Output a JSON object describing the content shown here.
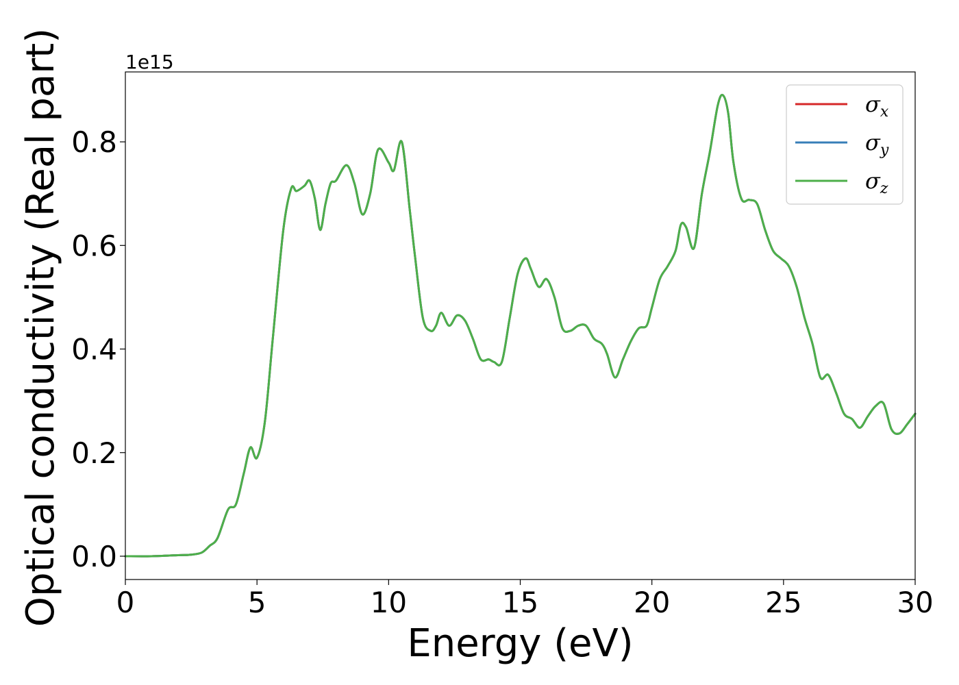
{
  "chart_data": {
    "type": "line",
    "xlabel": "Energy (eV)",
    "ylabel": "Optical conductivity (Real part)",
    "y_offset_label": "1e15",
    "y_scale_factor": 1000000000000000.0,
    "xlim": [
      0,
      30
    ],
    "ylim": [
      -0.045,
      0.935
    ],
    "x_ticks": [
      0,
      5,
      10,
      15,
      20,
      25,
      30
    ],
    "x_tick_labels": [
      "0",
      "5",
      "10",
      "15",
      "20",
      "25",
      "30"
    ],
    "y_ticks": [
      0.0,
      0.2,
      0.4,
      0.6,
      0.8
    ],
    "y_tick_labels": [
      "0.0",
      "0.2",
      "0.4",
      "0.6",
      "0.8"
    ],
    "grid": false,
    "legend_position": "top-right",
    "series": [
      {
        "name": "σx",
        "legend_symbol": "σ",
        "legend_subscript": "x",
        "color": "#d62728",
        "x": [
          0,
          1,
          2,
          2.5,
          2.9,
          3.2,
          3.5,
          3.9,
          4.2,
          4.5,
          4.75,
          5.0,
          5.3,
          5.6,
          6.0,
          6.3,
          6.5,
          6.8,
          7.0,
          7.2,
          7.4,
          7.6,
          7.8,
          8.0,
          8.4,
          8.7,
          9.0,
          9.3,
          9.6,
          10.0,
          10.2,
          10.5,
          10.8,
          11.0,
          11.3,
          11.6,
          11.8,
          12.0,
          12.3,
          12.6,
          12.9,
          13.2,
          13.5,
          13.8,
          14.0,
          14.3,
          14.6,
          14.9,
          15.2,
          15.4,
          15.7,
          16.0,
          16.3,
          16.6,
          16.9,
          17.2,
          17.5,
          17.8,
          18.1,
          18.3,
          18.6,
          18.9,
          19.2,
          19.5,
          19.8,
          20.0,
          20.3,
          20.6,
          20.9,
          21.1,
          21.3,
          21.6,
          21.9,
          22.2,
          22.5,
          22.7,
          22.9,
          23.1,
          23.4,
          23.7,
          24.0,
          24.3,
          24.6,
          24.9,
          25.2,
          25.5,
          25.8,
          26.1,
          26.4,
          26.7,
          27.0,
          27.3,
          27.6,
          27.9,
          28.2,
          28.5,
          28.8,
          29.1,
          29.4,
          29.7,
          30.0
        ],
        "y": [
          0.0,
          0.0,
          0.002,
          0.003,
          0.007,
          0.02,
          0.035,
          0.09,
          0.1,
          0.16,
          0.21,
          0.19,
          0.26,
          0.42,
          0.63,
          0.71,
          0.705,
          0.715,
          0.725,
          0.69,
          0.63,
          0.68,
          0.72,
          0.725,
          0.755,
          0.72,
          0.66,
          0.7,
          0.785,
          0.76,
          0.745,
          0.8,
          0.67,
          0.58,
          0.46,
          0.435,
          0.445,
          0.47,
          0.445,
          0.465,
          0.455,
          0.42,
          0.38,
          0.38,
          0.375,
          0.375,
          0.46,
          0.545,
          0.575,
          0.555,
          0.52,
          0.535,
          0.5,
          0.44,
          0.435,
          0.445,
          0.445,
          0.42,
          0.41,
          0.39,
          0.345,
          0.38,
          0.415,
          0.44,
          0.445,
          0.48,
          0.535,
          0.56,
          0.59,
          0.64,
          0.635,
          0.595,
          0.7,
          0.78,
          0.87,
          0.89,
          0.855,
          0.76,
          0.69,
          0.688,
          0.68,
          0.63,
          0.59,
          0.575,
          0.56,
          0.52,
          0.46,
          0.41,
          0.345,
          0.35,
          0.315,
          0.275,
          0.265,
          0.248,
          0.27,
          0.29,
          0.295,
          0.245,
          0.237,
          0.255,
          0.275
        ]
      },
      {
        "name": "σy",
        "legend_symbol": "σ",
        "legend_subscript": "y",
        "color": "#377eb8",
        "x": [
          0,
          1,
          2,
          2.5,
          2.9,
          3.2,
          3.5,
          3.9,
          4.2,
          4.5,
          4.75,
          5.0,
          5.3,
          5.6,
          6.0,
          6.3,
          6.5,
          6.8,
          7.0,
          7.2,
          7.4,
          7.6,
          7.8,
          8.0,
          8.4,
          8.7,
          9.0,
          9.3,
          9.6,
          10.0,
          10.2,
          10.5,
          10.8,
          11.0,
          11.3,
          11.6,
          11.8,
          12.0,
          12.3,
          12.6,
          12.9,
          13.2,
          13.5,
          13.8,
          14.0,
          14.3,
          14.6,
          14.9,
          15.2,
          15.4,
          15.7,
          16.0,
          16.3,
          16.6,
          16.9,
          17.2,
          17.5,
          17.8,
          18.1,
          18.3,
          18.6,
          18.9,
          19.2,
          19.5,
          19.8,
          20.0,
          20.3,
          20.6,
          20.9,
          21.1,
          21.3,
          21.6,
          21.9,
          22.2,
          22.5,
          22.7,
          22.9,
          23.1,
          23.4,
          23.7,
          24.0,
          24.3,
          24.6,
          24.9,
          25.2,
          25.5,
          25.8,
          26.1,
          26.4,
          26.7,
          27.0,
          27.3,
          27.6,
          27.9,
          28.2,
          28.5,
          28.8,
          29.1,
          29.4,
          29.7,
          30.0
        ],
        "y": [
          0.0,
          0.0,
          0.002,
          0.003,
          0.007,
          0.02,
          0.035,
          0.09,
          0.1,
          0.16,
          0.21,
          0.19,
          0.26,
          0.42,
          0.63,
          0.71,
          0.705,
          0.715,
          0.725,
          0.69,
          0.63,
          0.68,
          0.72,
          0.725,
          0.755,
          0.72,
          0.66,
          0.7,
          0.785,
          0.76,
          0.745,
          0.8,
          0.67,
          0.58,
          0.46,
          0.435,
          0.445,
          0.47,
          0.445,
          0.465,
          0.455,
          0.42,
          0.38,
          0.38,
          0.375,
          0.375,
          0.46,
          0.545,
          0.575,
          0.555,
          0.52,
          0.535,
          0.5,
          0.44,
          0.435,
          0.445,
          0.445,
          0.42,
          0.41,
          0.39,
          0.345,
          0.38,
          0.415,
          0.44,
          0.445,
          0.48,
          0.535,
          0.56,
          0.59,
          0.64,
          0.635,
          0.595,
          0.7,
          0.78,
          0.87,
          0.89,
          0.855,
          0.76,
          0.69,
          0.688,
          0.68,
          0.63,
          0.59,
          0.575,
          0.56,
          0.52,
          0.46,
          0.41,
          0.345,
          0.35,
          0.315,
          0.275,
          0.265,
          0.248,
          0.27,
          0.29,
          0.295,
          0.245,
          0.237,
          0.255,
          0.275
        ]
      },
      {
        "name": "σz",
        "legend_symbol": "σ",
        "legend_subscript": "z",
        "color": "#4daf4a",
        "x": [
          0,
          1,
          2,
          2.5,
          2.9,
          3.2,
          3.5,
          3.9,
          4.2,
          4.5,
          4.75,
          5.0,
          5.3,
          5.6,
          6.0,
          6.3,
          6.5,
          6.8,
          7.0,
          7.2,
          7.4,
          7.6,
          7.8,
          8.0,
          8.4,
          8.7,
          9.0,
          9.3,
          9.6,
          10.0,
          10.2,
          10.5,
          10.8,
          11.0,
          11.3,
          11.6,
          11.8,
          12.0,
          12.3,
          12.6,
          12.9,
          13.2,
          13.5,
          13.8,
          14.0,
          14.3,
          14.6,
          14.9,
          15.2,
          15.4,
          15.7,
          16.0,
          16.3,
          16.6,
          16.9,
          17.2,
          17.5,
          17.8,
          18.1,
          18.3,
          18.6,
          18.9,
          19.2,
          19.5,
          19.8,
          20.0,
          20.3,
          20.6,
          20.9,
          21.1,
          21.3,
          21.6,
          21.9,
          22.2,
          22.5,
          22.7,
          22.9,
          23.1,
          23.4,
          23.7,
          24.0,
          24.3,
          24.6,
          24.9,
          25.2,
          25.5,
          25.8,
          26.1,
          26.4,
          26.7,
          27.0,
          27.3,
          27.6,
          27.9,
          28.2,
          28.5,
          28.8,
          29.1,
          29.4,
          29.7,
          30.0
        ],
        "y": [
          0.0,
          0.0,
          0.002,
          0.003,
          0.007,
          0.02,
          0.035,
          0.09,
          0.1,
          0.16,
          0.21,
          0.19,
          0.26,
          0.42,
          0.63,
          0.71,
          0.705,
          0.715,
          0.725,
          0.69,
          0.63,
          0.68,
          0.72,
          0.725,
          0.755,
          0.72,
          0.66,
          0.7,
          0.785,
          0.76,
          0.745,
          0.8,
          0.67,
          0.58,
          0.46,
          0.435,
          0.445,
          0.47,
          0.445,
          0.465,
          0.455,
          0.42,
          0.38,
          0.38,
          0.375,
          0.375,
          0.46,
          0.545,
          0.575,
          0.555,
          0.52,
          0.535,
          0.5,
          0.44,
          0.435,
          0.445,
          0.445,
          0.42,
          0.41,
          0.39,
          0.345,
          0.38,
          0.415,
          0.44,
          0.445,
          0.48,
          0.535,
          0.56,
          0.59,
          0.64,
          0.635,
          0.595,
          0.7,
          0.78,
          0.87,
          0.89,
          0.855,
          0.76,
          0.69,
          0.688,
          0.68,
          0.63,
          0.59,
          0.575,
          0.56,
          0.52,
          0.46,
          0.41,
          0.345,
          0.35,
          0.315,
          0.275,
          0.265,
          0.248,
          0.27,
          0.29,
          0.295,
          0.245,
          0.237,
          0.255,
          0.275
        ]
      }
    ]
  }
}
